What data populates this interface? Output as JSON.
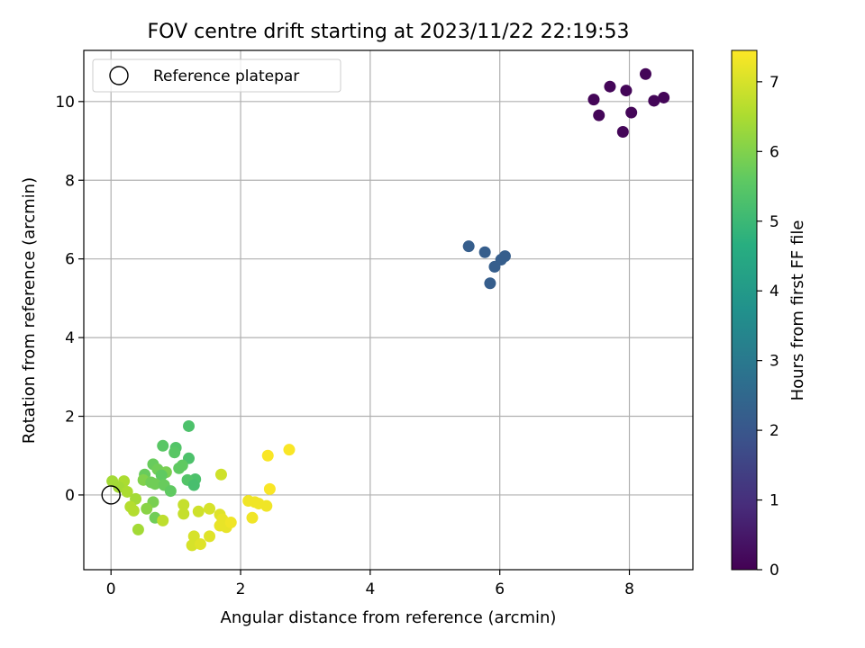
{
  "chart_data": {
    "type": "scatter",
    "title": "FOV centre drift starting at 2023/11/22 22:19:53",
    "xlabel": "Angular distance from reference (arcmin)",
    "ylabel": "Rotation from reference (arcmin)",
    "xlim": [
      -0.42,
      8.98
    ],
    "ylim": [
      -1.9,
      11.3
    ],
    "xticks": [
      0,
      2,
      4,
      6,
      8
    ],
    "yticks": [
      0,
      2,
      4,
      6,
      8,
      10
    ],
    "grid": true,
    "legend": {
      "label": "Reference platepar",
      "placement": "top-left"
    },
    "reference": {
      "x": 0,
      "y": 0
    },
    "colorbar": {
      "label": "Hours from first FF file",
      "min": 0,
      "max": 7.45,
      "ticks": [
        0,
        1,
        2,
        3,
        4,
        5,
        6,
        7
      ],
      "colormap": "viridis"
    },
    "points": [
      {
        "x": 8.25,
        "y": 10.7,
        "c": 0.1
      },
      {
        "x": 7.7,
        "y": 10.38,
        "c": 0.1
      },
      {
        "x": 7.95,
        "y": 10.28,
        "c": 0.1
      },
      {
        "x": 8.53,
        "y": 10.1,
        "c": 0.1
      },
      {
        "x": 7.45,
        "y": 10.05,
        "c": 0.1
      },
      {
        "x": 8.38,
        "y": 10.02,
        "c": 0.1
      },
      {
        "x": 8.03,
        "y": 9.72,
        "c": 0.1
      },
      {
        "x": 7.53,
        "y": 9.65,
        "c": 0.1
      },
      {
        "x": 7.9,
        "y": 9.23,
        "c": 0.1
      },
      {
        "x": 5.52,
        "y": 6.32,
        "c": 2.2
      },
      {
        "x": 5.77,
        "y": 6.17,
        "c": 2.2
      },
      {
        "x": 6.08,
        "y": 6.07,
        "c": 2.2
      },
      {
        "x": 6.02,
        "y": 5.98,
        "c": 2.2
      },
      {
        "x": 5.92,
        "y": 5.8,
        "c": 2.2
      },
      {
        "x": 5.85,
        "y": 5.38,
        "c": 2.2
      },
      {
        "x": 1.2,
        "y": 1.75,
        "c": 5.3
      },
      {
        "x": 0.8,
        "y": 1.25,
        "c": 5.5
      },
      {
        "x": 1.0,
        "y": 1.2,
        "c": 5.4
      },
      {
        "x": 0.98,
        "y": 1.08,
        "c": 5.5
      },
      {
        "x": 1.2,
        "y": 0.93,
        "c": 5.3
      },
      {
        "x": 0.65,
        "y": 0.78,
        "c": 5.7
      },
      {
        "x": 1.1,
        "y": 0.75,
        "c": 5.6
      },
      {
        "x": 1.05,
        "y": 0.68,
        "c": 5.6
      },
      {
        "x": 0.72,
        "y": 0.65,
        "c": 5.8
      },
      {
        "x": 0.85,
        "y": 0.58,
        "c": 5.9
      },
      {
        "x": 0.52,
        "y": 0.52,
        "c": 5.7
      },
      {
        "x": 0.78,
        "y": 0.5,
        "c": 5.6
      },
      {
        "x": 1.3,
        "y": 0.4,
        "c": 5.3
      },
      {
        "x": 1.18,
        "y": 0.38,
        "c": 5.4
      },
      {
        "x": 0.5,
        "y": 0.38,
        "c": 6.0
      },
      {
        "x": 0.62,
        "y": 0.32,
        "c": 5.8
      },
      {
        "x": 0.68,
        "y": 0.28,
        "c": 5.8
      },
      {
        "x": 0.82,
        "y": 0.25,
        "c": 5.7
      },
      {
        "x": 1.28,
        "y": 0.25,
        "c": 5.2
      },
      {
        "x": 0.92,
        "y": 0.1,
        "c": 5.6
      },
      {
        "x": 0.02,
        "y": 0.35,
        "c": 6.4
      },
      {
        "x": 0.2,
        "y": 0.35,
        "c": 6.5
      },
      {
        "x": 0.12,
        "y": 0.2,
        "c": 6.4
      },
      {
        "x": 0.25,
        "y": 0.08,
        "c": 6.5
      },
      {
        "x": 0.38,
        "y": -0.1,
        "c": 6.4
      },
      {
        "x": 0.65,
        "y": -0.18,
        "c": 5.9
      },
      {
        "x": 0.3,
        "y": -0.3,
        "c": 6.6
      },
      {
        "x": 0.35,
        "y": -0.4,
        "c": 6.6
      },
      {
        "x": 0.55,
        "y": -0.35,
        "c": 6.1
      },
      {
        "x": 0.68,
        "y": -0.58,
        "c": 5.8
      },
      {
        "x": 0.8,
        "y": -0.65,
        "c": 6.7
      },
      {
        "x": 0.42,
        "y": -0.88,
        "c": 6.4
      },
      {
        "x": 1.7,
        "y": 0.52,
        "c": 6.9
      },
      {
        "x": 1.12,
        "y": -0.25,
        "c": 6.8
      },
      {
        "x": 1.12,
        "y": -0.48,
        "c": 6.8
      },
      {
        "x": 1.35,
        "y": -0.42,
        "c": 6.9
      },
      {
        "x": 1.52,
        "y": -0.35,
        "c": 7.0
      },
      {
        "x": 1.68,
        "y": -0.5,
        "c": 7.1
      },
      {
        "x": 1.72,
        "y": -0.62,
        "c": 7.2
      },
      {
        "x": 1.68,
        "y": -0.78,
        "c": 7.2
      },
      {
        "x": 1.78,
        "y": -0.82,
        "c": 7.2
      },
      {
        "x": 1.85,
        "y": -0.7,
        "c": 7.3
      },
      {
        "x": 1.28,
        "y": -1.05,
        "c": 7.0
      },
      {
        "x": 1.52,
        "y": -1.05,
        "c": 7.1
      },
      {
        "x": 1.25,
        "y": -1.28,
        "c": 7.0
      },
      {
        "x": 1.38,
        "y": -1.25,
        "c": 7.1
      },
      {
        "x": 2.12,
        "y": -0.15,
        "c": 7.3
      },
      {
        "x": 2.22,
        "y": -0.18,
        "c": 7.3
      },
      {
        "x": 2.28,
        "y": -0.22,
        "c": 7.3
      },
      {
        "x": 2.4,
        "y": -0.28,
        "c": 7.3
      },
      {
        "x": 2.18,
        "y": -0.58,
        "c": 7.3
      },
      {
        "x": 2.45,
        "y": 0.15,
        "c": 7.4
      },
      {
        "x": 2.42,
        "y": 1.0,
        "c": 7.4
      },
      {
        "x": 2.75,
        "y": 1.15,
        "c": 7.4
      }
    ]
  }
}
